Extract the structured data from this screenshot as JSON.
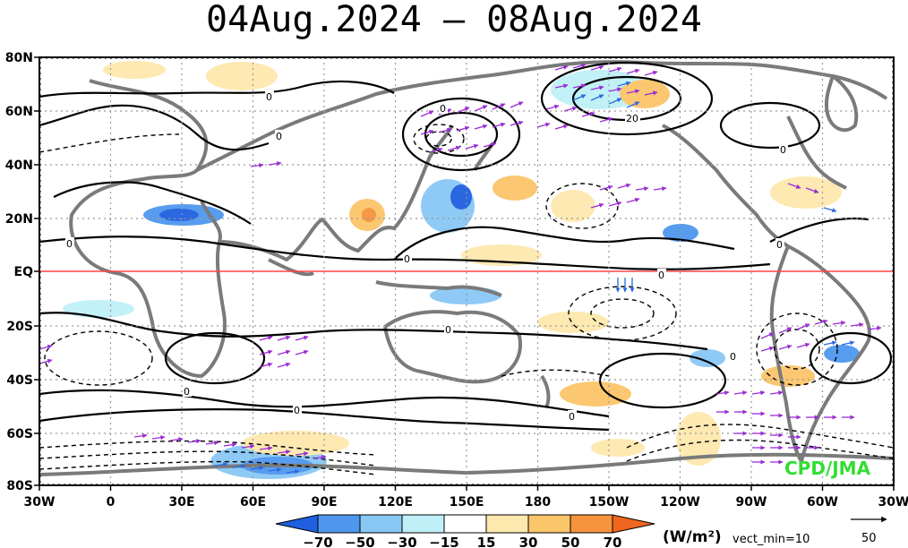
{
  "title": "04Aug.2024 – 08Aug.2024",
  "lat_labels": [
    "80N",
    "60N",
    "40N",
    "20N",
    "EQ",
    "20S",
    "40S",
    "60S",
    "80S"
  ],
  "lon_labels": [
    "30W",
    "0",
    "30E",
    "60E",
    "90E",
    "120E",
    "150E",
    "180",
    "150W",
    "120W",
    "90W",
    "60W",
    "30W"
  ],
  "colorbar": {
    "ticks": [
      "−70",
      "−50",
      "−30",
      "−15",
      "15",
      "30",
      "50",
      "70"
    ],
    "colors": [
      "#1f5fe0",
      "#4f97ee",
      "#89c8f5",
      "#bff0f7",
      "#ffffff",
      "#fde8ad",
      "#fbc56a",
      "#f6933c",
      "#f0661e"
    ]
  },
  "units": "(W/m²)",
  "vector_min_label": "vect_min=10",
  "reference_vector_label": "50",
  "credit": "CPD/JMA",
  "contour_zero_label": "0",
  "contour_label_20": "20",
  "equator_color": "#ff4444",
  "vector_colors": {
    "primary": "#9a2bd6",
    "strong": "#2a6ae0"
  }
}
